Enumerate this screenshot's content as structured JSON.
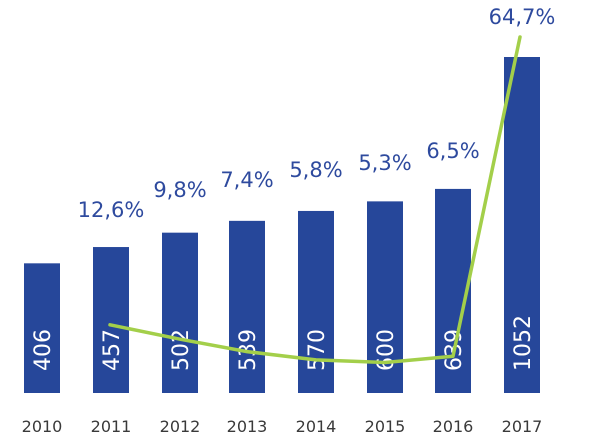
{
  "chart_data": {
    "type": "bar",
    "categories": [
      "2010",
      "2011",
      "2012",
      "2013",
      "2014",
      "2015",
      "2016",
      "2017"
    ],
    "series": [
      {
        "values": [
          406,
          457,
          502,
          539,
          570,
          600,
          639,
          1052
        ],
        "color": "#26479a"
      },
      {
        "type": "line",
        "values": [
          null,
          12.6,
          9.8,
          7.4,
          5.8,
          5.3,
          6.5,
          64.7
        ],
        "labels": [
          "",
          "12,6%",
          "9,8%",
          "7,4%",
          "5,8%",
          "5,3%",
          "6,5%",
          "64,7%"
        ],
        "color": "#a3cf4a"
      }
    ],
    "bar_labels": [
      "406",
      "457",
      "502",
      "539",
      "570",
      "600",
      "639",
      "1052"
    ],
    "title": "",
    "xlabel": "",
    "ylabel": "",
    "grid": false,
    "legend": "none"
  }
}
